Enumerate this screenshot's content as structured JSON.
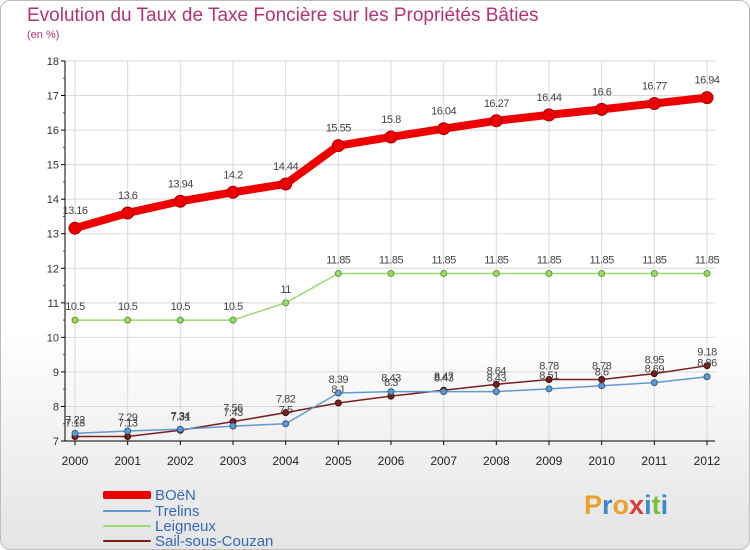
{
  "title": "Evolution du Taux de Taxe Foncière sur les Propriétés Bâties",
  "unit_label": "(en %)",
  "logo": {
    "text": "Proxiti",
    "letters": [
      "P",
      "r",
      "o",
      "x",
      "i",
      "t",
      "i"
    ],
    "colors": [
      "#e9a12a",
      "#3a88d0",
      "#e9a12a",
      "#d93b3b",
      "#3a88d0",
      "#7cbd3c",
      "#3a88d0"
    ]
  },
  "colors": {
    "BOëN": "#ee0000",
    "Trelins": "#5f9bd0",
    "Leigneux": "#9dda6e",
    "Sail-sous-Couzan": "#7a1e1e",
    "grid": "#d9d9d9",
    "axis": "#000000"
  },
  "chart_data": {
    "type": "line",
    "title": "Evolution du Taux de Taxe Foncière sur les Propriétés Bâties",
    "ylabel": "(en %)",
    "xlabel": "",
    "x": [
      "2000",
      "2001",
      "2002",
      "2003",
      "2004",
      "2005",
      "2006",
      "2007",
      "2008",
      "2009",
      "2010",
      "2011",
      "2012"
    ],
    "ylim": [
      7,
      18
    ],
    "yticks": [
      7,
      8,
      9,
      10,
      11,
      12,
      13,
      14,
      15,
      16,
      17,
      18
    ],
    "grid": true,
    "legend": "bottom-left",
    "series": [
      {
        "name": "BOëN",
        "values": [
          13.16,
          13.6,
          13.94,
          14.2,
          14.44,
          15.55,
          15.8,
          16.04,
          16.27,
          16.44,
          16.6,
          16.77,
          16.94
        ],
        "labels": [
          "13.16",
          "13.6",
          "13.94",
          "14.2",
          "14.44",
          "15.55",
          "15.8",
          "16.04",
          "16.27",
          "16.44",
          "16.6",
          "16.77",
          "16.94"
        ]
      },
      {
        "name": "Trelins",
        "values": [
          7.22,
          7.29,
          7.34,
          7.43,
          7.5,
          8.39,
          8.43,
          8.43,
          8.43,
          8.51,
          8.6,
          8.69,
          8.86
        ],
        "labels": [
          "7.22",
          "7.29",
          "7.34",
          "7.43",
          "7.5",
          "8.39",
          "8.43",
          "8.43",
          "8.43",
          "8.51",
          "8.6",
          "8.69",
          "8.86"
        ]
      },
      {
        "name": "Leigneux",
        "values": [
          10.5,
          10.5,
          10.5,
          10.5,
          11,
          11.85,
          11.85,
          11.85,
          11.85,
          11.85,
          11.85,
          11.85,
          11.85
        ],
        "labels": [
          "10.5",
          "10.5",
          "10.5",
          "10.5",
          "11",
          "11.85",
          "11.85",
          "11.85",
          "11.85",
          "11.85",
          "11.85",
          "11.85",
          "11.85"
        ]
      },
      {
        "name": "Sail-sous-Couzan",
        "values": [
          7.13,
          7.13,
          7.31,
          7.56,
          7.82,
          8.1,
          8.3,
          8.47,
          8.64,
          8.78,
          8.78,
          8.95,
          9.18
        ],
        "labels": [
          "7.13",
          "7.13",
          "7.31",
          "7.56",
          "7.82",
          "8.1",
          "8.3",
          "8.47",
          "8.64",
          "8.78",
          "8.78",
          "8.95",
          "9.18"
        ]
      }
    ]
  }
}
